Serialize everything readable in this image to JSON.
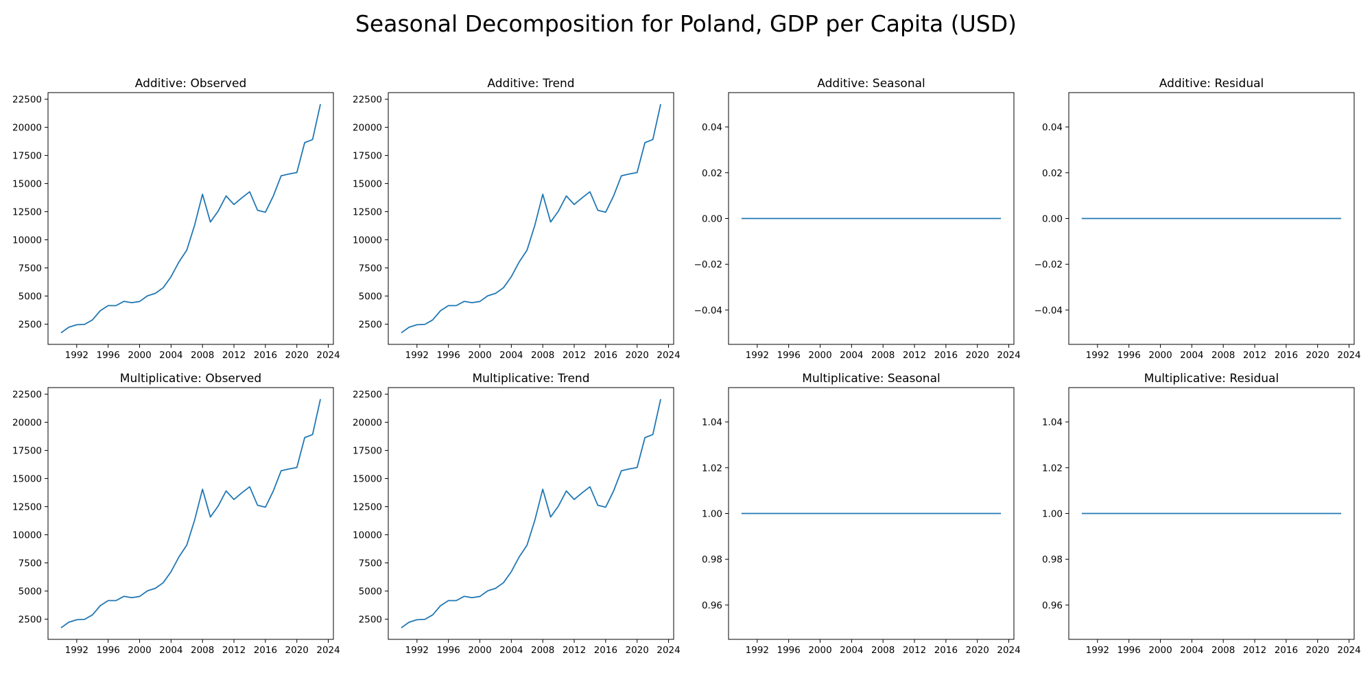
{
  "title": "Seasonal Decomposition for Poland, GDP per Capita (USD)",
  "colors": {
    "series": "#1f77b4"
  },
  "chart_data": [
    {
      "type": "line",
      "title": "Additive: Observed",
      "x": [
        1990,
        1991,
        1992,
        1993,
        1994,
        1995,
        1996,
        1997,
        1998,
        1999,
        2000,
        2001,
        2002,
        2003,
        2004,
        2005,
        2006,
        2007,
        2008,
        2009,
        2010,
        2011,
        2012,
        2013,
        2014,
        2015,
        2016,
        2017,
        2018,
        2019,
        2020,
        2021,
        2022,
        2023
      ],
      "y": [
        1730,
        2230,
        2450,
        2480,
        2880,
        3700,
        4150,
        4150,
        4530,
        4410,
        4520,
        5020,
        5240,
        5740,
        6720,
        8030,
        9080,
        11310,
        14050,
        11580,
        12560,
        13900,
        13140,
        13730,
        14270,
        12630,
        12450,
        13880,
        15690,
        15850,
        15980,
        18640,
        18910,
        22060
      ],
      "xticks": [
        1992,
        1996,
        2000,
        2004,
        2008,
        2012,
        2016,
        2020,
        2024
      ],
      "yticks": [
        2500,
        5000,
        7500,
        10000,
        12500,
        15000,
        17500,
        20000,
        22500
      ],
      "xlim": [
        1988.35,
        2024.65
      ],
      "ylim": [
        705,
        23085
      ]
    },
    {
      "type": "line",
      "title": "Additive: Trend",
      "x": [
        1990,
        1991,
        1992,
        1993,
        1994,
        1995,
        1996,
        1997,
        1998,
        1999,
        2000,
        2001,
        2002,
        2003,
        2004,
        2005,
        2006,
        2007,
        2008,
        2009,
        2010,
        2011,
        2012,
        2013,
        2014,
        2015,
        2016,
        2017,
        2018,
        2019,
        2020,
        2021,
        2022,
        2023
      ],
      "y": [
        1730,
        2230,
        2450,
        2480,
        2880,
        3700,
        4150,
        4150,
        4530,
        4410,
        4520,
        5020,
        5240,
        5740,
        6720,
        8030,
        9080,
        11310,
        14050,
        11580,
        12560,
        13900,
        13140,
        13730,
        14270,
        12630,
        12450,
        13880,
        15690,
        15850,
        15980,
        18640,
        18910,
        22060
      ],
      "xticks": [
        1992,
        1996,
        2000,
        2004,
        2008,
        2012,
        2016,
        2020,
        2024
      ],
      "yticks": [
        2500,
        5000,
        7500,
        10000,
        12500,
        15000,
        17500,
        20000,
        22500
      ],
      "xlim": [
        1988.35,
        2024.65
      ],
      "ylim": [
        705,
        23085
      ]
    },
    {
      "type": "line",
      "title": "Additive: Seasonal",
      "x": [
        1990,
        2023
      ],
      "y": [
        0,
        0
      ],
      "xticks": [
        1992,
        1996,
        2000,
        2004,
        2008,
        2012,
        2016,
        2020,
        2024
      ],
      "yticks": [
        -0.04,
        -0.02,
        0.0,
        0.02,
        0.04
      ],
      "ytick_labels": [
        "−0.04",
        "−0.02",
        "0.00",
        "0.02",
        "0.04"
      ],
      "xlim": [
        1988.35,
        2024.65
      ],
      "ylim": [
        -0.055,
        0.055
      ]
    },
    {
      "type": "line",
      "title": "Additive: Residual",
      "x": [
        1990,
        2023
      ],
      "y": [
        0,
        0
      ],
      "xticks": [
        1992,
        1996,
        2000,
        2004,
        2008,
        2012,
        2016,
        2020,
        2024
      ],
      "yticks": [
        -0.04,
        -0.02,
        0.0,
        0.02,
        0.04
      ],
      "ytick_labels": [
        "−0.04",
        "−0.02",
        "0.00",
        "0.02",
        "0.04"
      ],
      "xlim": [
        1988.35,
        2024.65
      ],
      "ylim": [
        -0.055,
        0.055
      ]
    },
    {
      "type": "line",
      "title": "Multiplicative: Observed",
      "x": [
        1990,
        1991,
        1992,
        1993,
        1994,
        1995,
        1996,
        1997,
        1998,
        1999,
        2000,
        2001,
        2002,
        2003,
        2004,
        2005,
        2006,
        2007,
        2008,
        2009,
        2010,
        2011,
        2012,
        2013,
        2014,
        2015,
        2016,
        2017,
        2018,
        2019,
        2020,
        2021,
        2022,
        2023
      ],
      "y": [
        1730,
        2230,
        2450,
        2480,
        2880,
        3700,
        4150,
        4150,
        4530,
        4410,
        4520,
        5020,
        5240,
        5740,
        6720,
        8030,
        9080,
        11310,
        14050,
        11580,
        12560,
        13900,
        13140,
        13730,
        14270,
        12630,
        12450,
        13880,
        15690,
        15850,
        15980,
        18640,
        18910,
        22060
      ],
      "xticks": [
        1992,
        1996,
        2000,
        2004,
        2008,
        2012,
        2016,
        2020,
        2024
      ],
      "yticks": [
        2500,
        5000,
        7500,
        10000,
        12500,
        15000,
        17500,
        20000,
        22500
      ],
      "xlim": [
        1988.35,
        2024.65
      ],
      "ylim": [
        705,
        23085
      ]
    },
    {
      "type": "line",
      "title": "Multiplicative: Trend",
      "x": [
        1990,
        1991,
        1992,
        1993,
        1994,
        1995,
        1996,
        1997,
        1998,
        1999,
        2000,
        2001,
        2002,
        2003,
        2004,
        2005,
        2006,
        2007,
        2008,
        2009,
        2010,
        2011,
        2012,
        2013,
        2014,
        2015,
        2016,
        2017,
        2018,
        2019,
        2020,
        2021,
        2022,
        2023
      ],
      "y": [
        1730,
        2230,
        2450,
        2480,
        2880,
        3700,
        4150,
        4150,
        4530,
        4410,
        4520,
        5020,
        5240,
        5740,
        6720,
        8030,
        9080,
        11310,
        14050,
        11580,
        12560,
        13900,
        13140,
        13730,
        14270,
        12630,
        12450,
        13880,
        15690,
        15850,
        15980,
        18640,
        18910,
        22060
      ],
      "xticks": [
        1992,
        1996,
        2000,
        2004,
        2008,
        2012,
        2016,
        2020,
        2024
      ],
      "yticks": [
        2500,
        5000,
        7500,
        10000,
        12500,
        15000,
        17500,
        20000,
        22500
      ],
      "xlim": [
        1988.35,
        2024.65
      ],
      "ylim": [
        705,
        23085
      ]
    },
    {
      "type": "line",
      "title": "Multiplicative: Seasonal",
      "x": [
        1990,
        2023
      ],
      "y": [
        1,
        1
      ],
      "xticks": [
        1992,
        1996,
        2000,
        2004,
        2008,
        2012,
        2016,
        2020,
        2024
      ],
      "yticks": [
        0.96,
        0.98,
        1.0,
        1.02,
        1.04
      ],
      "ytick_labels": [
        "0.96",
        "0.98",
        "1.00",
        "1.02",
        "1.04"
      ],
      "xlim": [
        1988.35,
        2024.65
      ],
      "ylim": [
        0.945,
        1.055
      ]
    },
    {
      "type": "line",
      "title": "Multiplicative: Residual",
      "x": [
        1990,
        2023
      ],
      "y": [
        1,
        1
      ],
      "xticks": [
        1992,
        1996,
        2000,
        2004,
        2008,
        2012,
        2016,
        2020,
        2024
      ],
      "yticks": [
        0.96,
        0.98,
        1.0,
        1.02,
        1.04
      ],
      "ytick_labels": [
        "0.96",
        "0.98",
        "1.00",
        "1.02",
        "1.04"
      ],
      "xlim": [
        1988.35,
        2024.65
      ],
      "ylim": [
        0.945,
        1.055
      ]
    }
  ]
}
